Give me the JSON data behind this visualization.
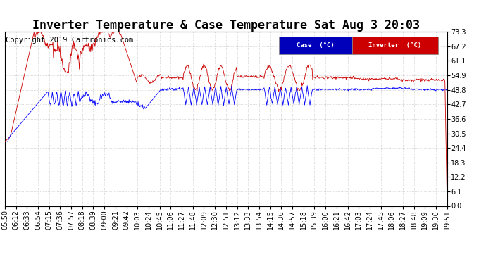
{
  "title": "Inverter Temperature & Case Temperature Sat Aug 3 20:03",
  "copyright": "Copyright 2019 Cartronics.com",
  "legend_case_label": "Case  (°C)",
  "legend_inv_label": "Inverter  (°C)",
  "case_color": "#0000ff",
  "inv_color": "#cc0000",
  "legend_case_bg": "#0000bb",
  "legend_inv_bg": "#cc0000",
  "background_color": "#ffffff",
  "plot_bg_color": "#ffffff",
  "grid_color": "#bbbbbb",
  "ylim": [
    0.0,
    73.3
  ],
  "yticks": [
    0.0,
    6.1,
    12.2,
    18.3,
    24.4,
    30.5,
    36.6,
    42.7,
    48.8,
    54.9,
    61.1,
    67.2,
    73.3
  ],
  "title_fontsize": 12,
  "copyright_fontsize": 7.5,
  "tick_fontsize": 7,
  "xlabel_rotation": 90,
  "xtick_labels": [
    "05:50",
    "06:12",
    "06:33",
    "06:54",
    "07:15",
    "07:36",
    "07:57",
    "08:18",
    "08:39",
    "09:00",
    "09:21",
    "09:42",
    "10:03",
    "10:24",
    "10:45",
    "11:06",
    "11:27",
    "11:48",
    "12:09",
    "12:30",
    "12:51",
    "13:12",
    "13:33",
    "13:54",
    "14:15",
    "14:36",
    "14:57",
    "15:18",
    "15:39",
    "16:00",
    "16:21",
    "16:42",
    "17:03",
    "17:24",
    "17:45",
    "18:06",
    "18:27",
    "18:48",
    "19:09",
    "19:30",
    "19:51"
  ]
}
